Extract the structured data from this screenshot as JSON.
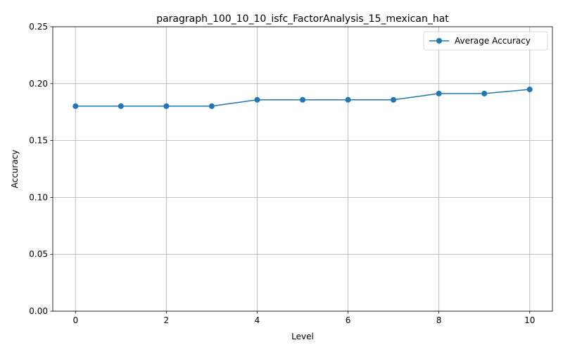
{
  "chart_data": {
    "type": "line",
    "title": "paragraph_100_10_10_isfc_FactorAnalysis_15_mexican_hat",
    "xlabel": "Level",
    "ylabel": "Accuracy",
    "x": [
      0,
      1,
      2,
      3,
      4,
      5,
      6,
      7,
      8,
      9,
      10
    ],
    "series": [
      {
        "name": "Average Accuracy",
        "color": "#1f77b4",
        "marker": "circle",
        "values": [
          0.1802,
          0.1802,
          0.1802,
          0.1802,
          0.1858,
          0.1858,
          0.1858,
          0.1858,
          0.1913,
          0.1913,
          0.1949
        ]
      }
    ],
    "xlim": [
      -0.5,
      10.5
    ],
    "ylim": [
      0,
      0.25
    ],
    "xticks": [
      0,
      2,
      4,
      6,
      8,
      10
    ],
    "xtick_labels": [
      "0",
      "2",
      "4",
      "6",
      "8",
      "10"
    ],
    "yticks": [
      0,
      0.05,
      0.1,
      0.15,
      0.2,
      0.25
    ],
    "ytick_labels": [
      "0.00",
      "0.05",
      "0.10",
      "0.15",
      "0.20",
      "0.25"
    ],
    "grid": true,
    "legend_position": "top-right"
  }
}
